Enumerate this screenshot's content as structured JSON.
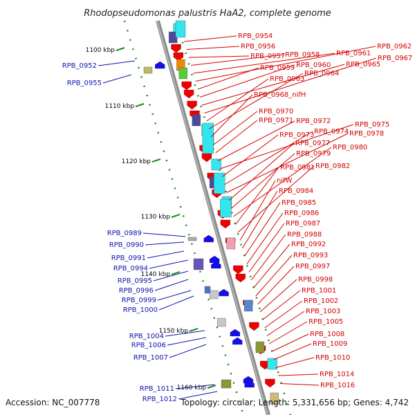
{
  "title": "Rhodopseudomonas palustris HaA2, complete genome",
  "footer": {
    "accession": "Accession: NC_007778",
    "topology": "Topology: circular; Length: 5,331,656 bp; Genes: 4,742"
  },
  "colors": {
    "backbone": "#8c8c8c",
    "forward": "#ee0000",
    "reverse": "#1010ee",
    "tick": "#1a8a1a",
    "label_forward": "#d40000",
    "label_reverse": "#1010b0"
  },
  "ticks": [
    "1100 kbp",
    "1110 kbp",
    "1120 kbp",
    "1130 kbp",
    "1140 kbp",
    "1150 kbp",
    "1160 kbp"
  ],
  "right_labels": [
    "RPB_0954",
    "RPB_0956",
    "RPB_0957",
    "RPB_0958",
    "RPB_0961",
    "RPB_0962",
    "RPB_0959",
    "RPB_0960",
    "RPB_0965",
    "RPB_0967",
    "RPB_0963",
    "RPB_0964",
    "RPB_0968_nifH",
    "RPB_0970",
    "RPB_0971",
    "RPB_0972",
    "RPB_0975",
    "RPB_0973",
    "RPB_0974",
    "RPB_0978",
    "RPB_0977",
    "RPB_0979",
    "RPB_0980",
    "RPB_0981",
    "RPB_0982",
    "nifW",
    "RPB_0984",
    "RPB_0985",
    "RPB_0986",
    "RPB_0987",
    "RPB_0988",
    "RPB_0992",
    "RPB_0993",
    "RPB_0997",
    "RPB_0998",
    "RPB_1001",
    "RPB_1002",
    "RPB_1003",
    "RPB_1005",
    "RPB_1008",
    "RPB_1009",
    "RPB_1010",
    "RPB_1014",
    "RPB_1016"
  ],
  "left_labels": [
    "RPB_0952",
    "RPB_0955",
    "RPB_0989",
    "RPB_0990",
    "RPB_0991",
    "RPB_0994",
    "RPB_0995",
    "RPB_0996",
    "RPB_0999",
    "RPB_1000",
    "RPB_1004",
    "RPB_1006",
    "RPB_1007",
    "RPB_1011",
    "RPB_1012"
  ]
}
